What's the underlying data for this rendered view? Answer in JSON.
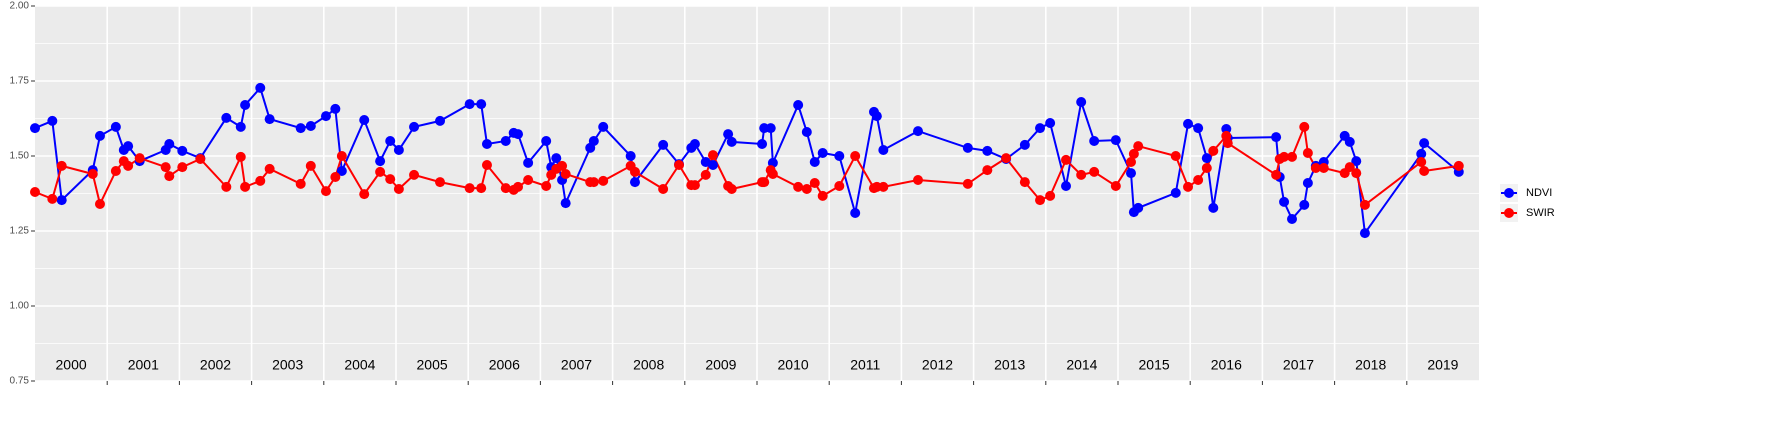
{
  "chart_data": {
    "type": "line",
    "x": [
      2000.0,
      2000.24,
      2000.37,
      2000.8,
      2000.9,
      2001.12,
      2001.23,
      2001.29,
      2001.45,
      2001.81,
      2001.86,
      2002.04,
      2002.29,
      2002.65,
      2002.85,
      2002.91,
      2003.12,
      2003.25,
      2003.68,
      2003.82,
      2004.03,
      2004.16,
      2004.25,
      2004.56,
      2004.78,
      2004.92,
      2005.04,
      2005.25,
      2005.61,
      2006.02,
      2006.18,
      2006.26,
      2006.52,
      2006.63,
      2006.69,
      2006.83,
      2007.08,
      2007.15,
      2007.22,
      2007.3,
      2007.35,
      2007.69,
      2007.74,
      2007.87,
      2008.25,
      2008.31,
      2008.7,
      2008.92,
      2009.09,
      2009.14,
      2009.29,
      2009.39,
      2009.6,
      2009.65,
      2010.07,
      2010.1,
      2010.19,
      2010.22,
      2010.57,
      2010.69,
      2010.8,
      2010.91,
      2011.14,
      2011.36,
      2011.62,
      2011.66,
      2011.75,
      2012.23,
      2012.92,
      2013.19,
      2013.45,
      2013.71,
      2013.92,
      2014.06,
      2014.28,
      2014.49,
      2014.67,
      2014.97,
      2015.18,
      2015.22,
      2015.28,
      2015.8,
      2015.97,
      2016.11,
      2016.23,
      2016.32,
      2016.5,
      2016.52,
      2017.19,
      2017.24,
      2017.3,
      2017.41,
      2017.58,
      2017.63,
      2017.74,
      2017.85,
      2018.14,
      2018.21,
      2018.3,
      2018.42,
      2019.2,
      2019.24,
      2019.72
    ],
    "series": [
      {
        "name": "NDVI",
        "color": "#0000ff",
        "values": [
          1.593,
          1.617,
          1.353,
          1.453,
          1.567,
          1.597,
          1.52,
          1.533,
          1.483,
          1.52,
          1.54,
          1.517,
          1.493,
          1.627,
          1.597,
          1.67,
          1.727,
          1.623,
          1.593,
          1.6,
          1.633,
          1.657,
          1.45,
          1.62,
          1.483,
          1.55,
          1.52,
          1.597,
          1.617,
          1.673,
          1.673,
          1.54,
          1.55,
          1.577,
          1.573,
          1.477,
          1.55,
          1.463,
          1.493,
          1.42,
          1.343,
          1.527,
          1.55,
          1.597,
          1.5,
          1.413,
          1.537,
          1.473,
          1.527,
          1.54,
          1.48,
          1.47,
          1.573,
          1.547,
          1.54,
          1.593,
          1.593,
          1.477,
          1.67,
          1.58,
          1.48,
          1.51,
          1.5,
          1.31,
          1.647,
          1.633,
          1.52,
          1.583,
          1.527,
          1.517,
          1.49,
          1.537,
          1.593,
          1.61,
          1.4,
          1.68,
          1.55,
          1.553,
          1.443,
          1.313,
          1.327,
          1.377,
          1.607,
          1.593,
          1.493,
          1.327,
          1.59,
          1.56,
          1.563,
          1.43,
          1.347,
          1.29,
          1.337,
          1.41,
          1.467,
          1.48,
          1.567,
          1.547,
          1.483,
          1.243,
          1.507,
          1.543,
          1.447
        ]
      },
      {
        "name": "SWIR",
        "color": "#ff0000",
        "values": [
          1.38,
          1.357,
          1.467,
          1.44,
          1.34,
          1.45,
          1.483,
          1.467,
          1.493,
          1.463,
          1.433,
          1.463,
          1.49,
          1.397,
          1.497,
          1.397,
          1.417,
          1.457,
          1.407,
          1.467,
          1.383,
          1.43,
          1.5,
          1.373,
          1.447,
          1.423,
          1.39,
          1.437,
          1.413,
          1.393,
          1.393,
          1.47,
          1.393,
          1.387,
          1.397,
          1.42,
          1.4,
          1.437,
          1.457,
          1.467,
          1.44,
          1.413,
          1.413,
          1.417,
          1.467,
          1.447,
          1.39,
          1.47,
          1.403,
          1.403,
          1.437,
          1.503,
          1.4,
          1.39,
          1.413,
          1.413,
          1.453,
          1.44,
          1.397,
          1.39,
          1.41,
          1.367,
          1.4,
          1.5,
          1.393,
          1.397,
          1.397,
          1.42,
          1.407,
          1.453,
          1.493,
          1.413,
          1.353,
          1.367,
          1.487,
          1.437,
          1.447,
          1.4,
          1.48,
          1.507,
          1.533,
          1.5,
          1.397,
          1.42,
          1.46,
          1.517,
          1.567,
          1.543,
          1.437,
          1.49,
          1.497,
          1.497,
          1.597,
          1.51,
          1.46,
          1.46,
          1.443,
          1.463,
          1.443,
          1.337,
          1.48,
          1.45,
          1.467
        ]
      }
    ],
    "xlim": [
      2000,
      2020
    ],
    "xticks": [
      {
        "value": 2000.5,
        "label": "2000"
      },
      {
        "value": 2001.5,
        "label": "2001"
      },
      {
        "value": 2002.5,
        "label": "2002"
      },
      {
        "value": 2003.5,
        "label": "2003"
      },
      {
        "value": 2004.5,
        "label": "2004"
      },
      {
        "value": 2005.5,
        "label": "2005"
      },
      {
        "value": 2006.5,
        "label": "2006"
      },
      {
        "value": 2007.5,
        "label": "2007"
      },
      {
        "value": 2008.5,
        "label": "2008"
      },
      {
        "value": 2009.5,
        "label": "2009"
      },
      {
        "value": 2010.5,
        "label": "2010"
      },
      {
        "value": 2011.5,
        "label": "2011"
      },
      {
        "value": 2012.5,
        "label": "2012"
      },
      {
        "value": 2013.5,
        "label": "2013"
      },
      {
        "value": 2014.5,
        "label": "2014"
      },
      {
        "value": 2015.5,
        "label": "2015"
      },
      {
        "value": 2016.5,
        "label": "2016"
      },
      {
        "value": 2017.5,
        "label": "2017"
      },
      {
        "value": 2018.5,
        "label": "2018"
      },
      {
        "value": 2019.5,
        "label": "2019"
      }
    ],
    "xgrid": [
      2001,
      2002,
      2003,
      2004,
      2005,
      2006,
      2007,
      2008,
      2009,
      2010,
      2011,
      2012,
      2013,
      2014,
      2015,
      2016,
      2017,
      2018,
      2019
    ],
    "ylim": [
      0.75,
      2.0
    ],
    "yticks": [
      {
        "value": 0.75,
        "label": "0.75"
      },
      {
        "value": 1.0,
        "label": "1.00"
      },
      {
        "value": 1.25,
        "label": "1.25"
      },
      {
        "value": 1.5,
        "label": "1.50"
      },
      {
        "value": 1.75,
        "label": "1.75"
      },
      {
        "value": 2.0,
        "label": "2.00"
      }
    ],
    "grid": true,
    "legend": "right"
  }
}
